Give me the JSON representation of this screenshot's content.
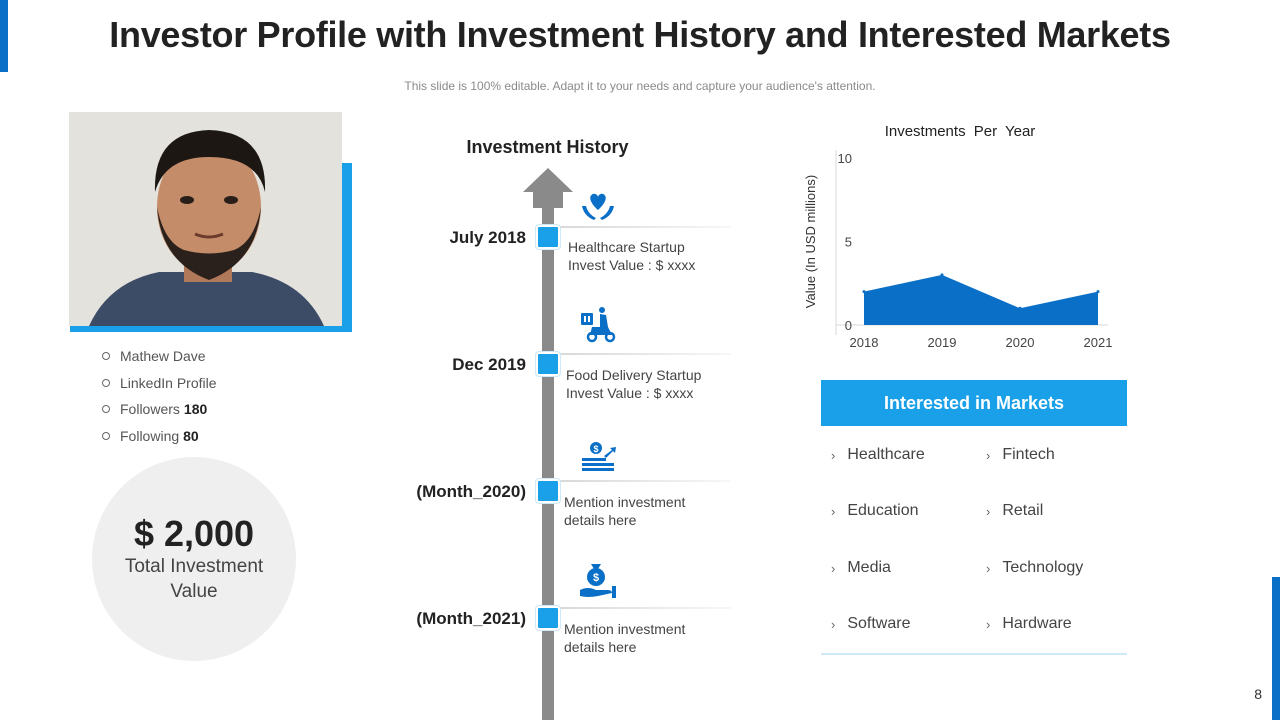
{
  "slide": {
    "title": "Investor Profile with Investment History and Interested Markets",
    "subtitle": "This slide is 100% editable. Adapt it to your needs and capture your audience's attention.",
    "page_number": "8"
  },
  "profile": {
    "name": "Mathew Dave",
    "linkedin": "LinkedIn Profile",
    "followers_label": "Followers",
    "followers_value": "180",
    "following_label": "Following",
    "following_value": "80",
    "total_value": "$ 2,000",
    "total_label": "Total Investment Value"
  },
  "timeline": {
    "title": "Investment History",
    "entries": [
      {
        "date": "July 2018",
        "line1": "Healthcare Startup",
        "line2": "Invest Value : $ xxxx",
        "icon": "heart-hands-icon"
      },
      {
        "date": "Dec 2019",
        "line1": "Food Delivery Startup",
        "line2": "Invest Value : $ xxxx",
        "icon": "delivery-scooter-icon"
      },
      {
        "date": "(Month_2020)",
        "line1": "Mention investment",
        "line2": "details here",
        "icon": "money-growth-icon"
      },
      {
        "date": "(Month_2021)",
        "line1": "Mention investment",
        "line2": "details here",
        "icon": "money-bag-hand-icon"
      }
    ]
  },
  "chart_data": {
    "type": "area",
    "title": "Investments  Per Year",
    "xlabel": "",
    "ylabel": "Value (In USD millions)",
    "categories": [
      "2018",
      "2019",
      "2020",
      "2021"
    ],
    "values": [
      2,
      3,
      1,
      2
    ],
    "ylim": [
      0,
      10
    ],
    "yticks": [
      "0",
      "5",
      "10"
    ],
    "color": "#0a6fc7"
  },
  "markets": {
    "header": "Interested in Markets",
    "left": [
      "Healthcare",
      "Education",
      "Media",
      "Software"
    ],
    "right": [
      "Fintech",
      "Retail",
      "Technology",
      "Hardware"
    ]
  },
  "colors": {
    "accent": "#1aa0e8",
    "brand": "#0a6fc7"
  }
}
